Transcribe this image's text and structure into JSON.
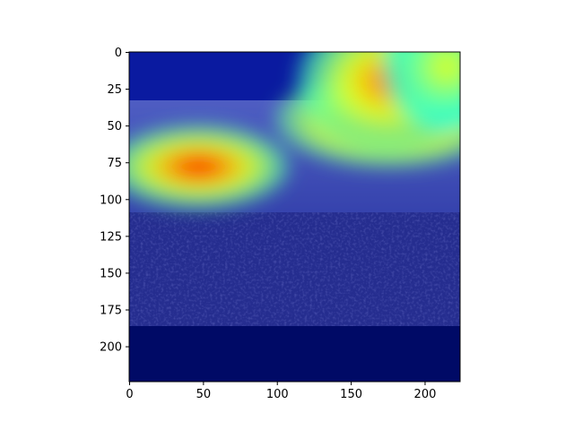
{
  "chart_data": {
    "type": "heatmap",
    "title": "",
    "xlabel": "",
    "ylabel": "",
    "xlim": [
      0,
      224
    ],
    "ylim": [
      224,
      0
    ],
    "x_ticks": [
      "0",
      "50",
      "100",
      "150",
      "200"
    ],
    "y_ticks": [
      "0",
      "25",
      "50",
      "75",
      "100",
      "125",
      "150",
      "175",
      "200"
    ],
    "colormap": "jet",
    "overlay": "city skyline photo under a semi-transparent attention heatmap",
    "hotspots": [
      {
        "x": 47,
        "y": 78,
        "intensity": 0.92,
        "sx": 28,
        "sy": 13
      },
      {
        "x": 176,
        "y": 46,
        "intensity": 1.0,
        "sx": 35,
        "sy": 15
      },
      {
        "x": 175,
        "y": 20,
        "intensity": 0.78,
        "sx": 28,
        "sy": 22
      },
      {
        "x": 215,
        "y": 10,
        "intensity": 0.5,
        "sx": 20,
        "sy": 20
      }
    ],
    "colors": {
      "low": "#00007f",
      "sky": "#6f86b4",
      "city": "#2b3455"
    }
  }
}
